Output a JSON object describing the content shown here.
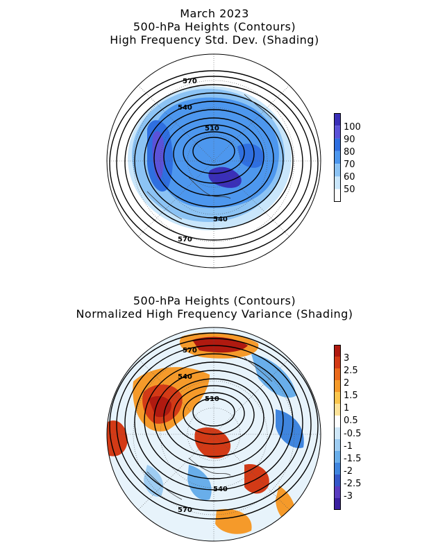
{
  "panel_top": {
    "title_lines": [
      "March 2023",
      "500-hPa Heights (Contours)",
      "High Frequency Std. Dev. (Shading)"
    ],
    "contour_labels": [
      "570",
      "540",
      "510",
      "540",
      "570"
    ],
    "colorbar": {
      "ticks": [
        "100",
        "90",
        "80",
        "70",
        "60",
        "50"
      ],
      "colors": [
        "#3a2fb8",
        "#5b52d8",
        "#2f6fe0",
        "#4d97ee",
        "#8cc3f4",
        "#c9e6fb",
        "#ffffff"
      ]
    }
  },
  "panel_bottom": {
    "title_lines": [
      "500-hPa Heights (Contours)",
      "Normalized High Frequency Variance (Shading)"
    ],
    "contour_labels": [
      "570",
      "540",
      "510",
      "540",
      "570"
    ],
    "colorbar": {
      "ticks": [
        "3",
        "2.5",
        "2",
        "1.5",
        "1",
        "0.5",
        "-0.5",
        "-1",
        "-1.5",
        "-2",
        "-2.5",
        "-3"
      ],
      "colors": [
        "#b01a10",
        "#d33a16",
        "#ea6a1c",
        "#f59a2a",
        "#fbc64e",
        "#fde39a",
        "#ffffff",
        "#cfe7f8",
        "#9fcdf2",
        "#69aeea",
        "#3f85de",
        "#3557c8",
        "#5a3cc0",
        "#3a20a0"
      ]
    }
  }
}
